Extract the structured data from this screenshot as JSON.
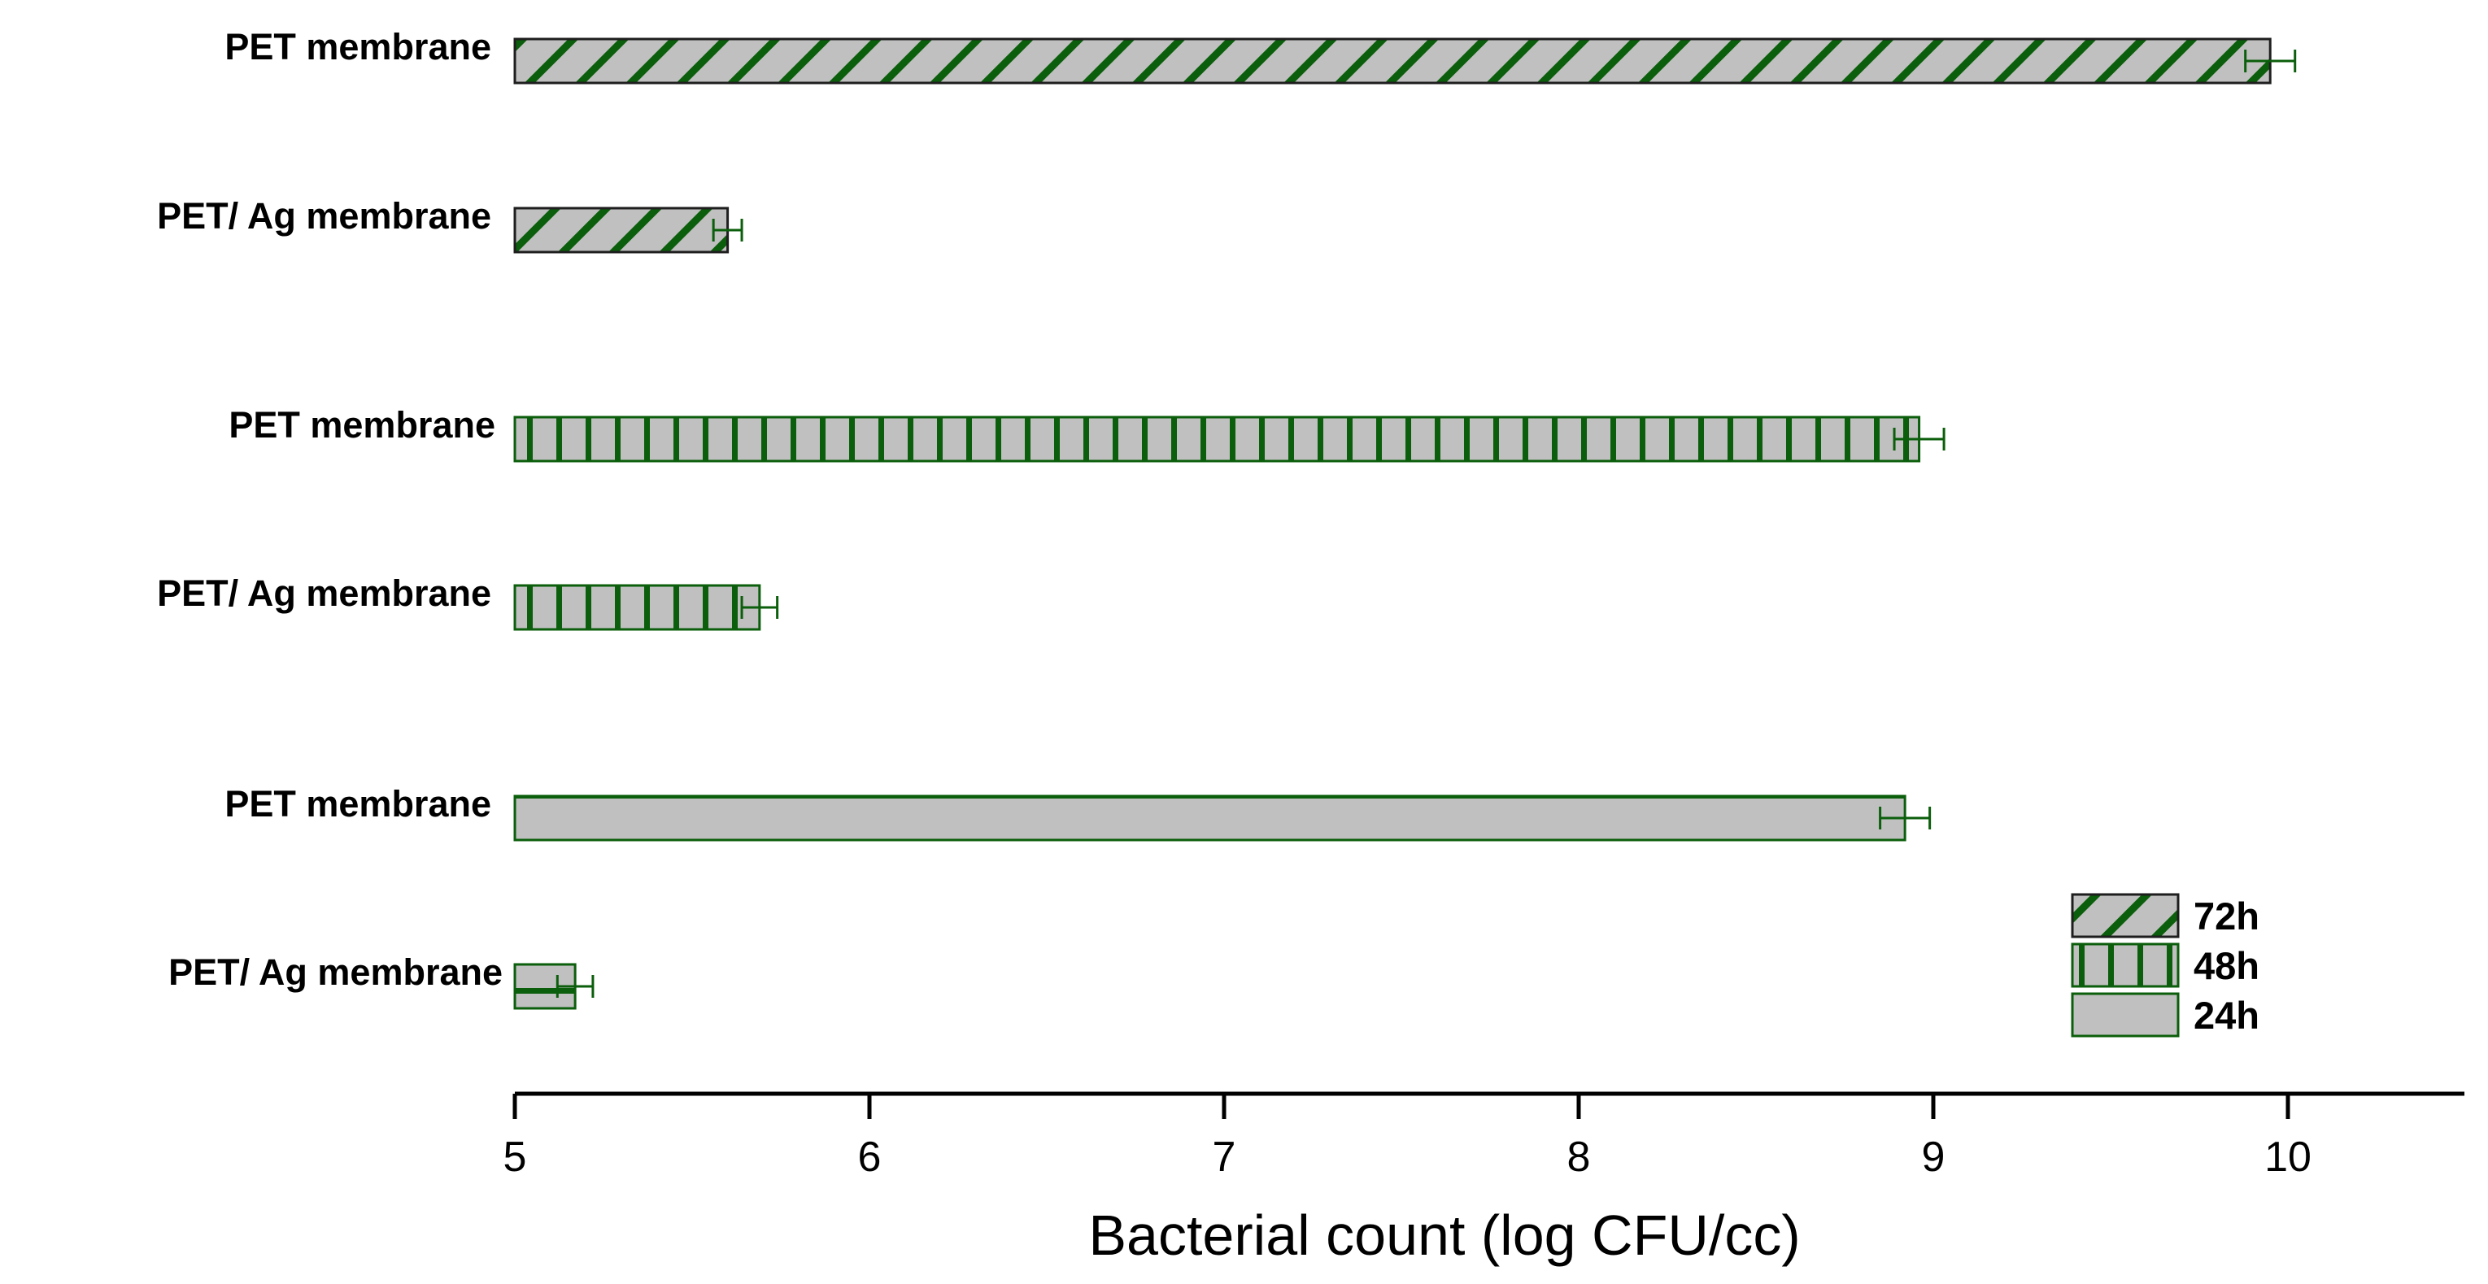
{
  "chart_data": {
    "type": "bar",
    "orientation": "horizontal",
    "xlabel": "Bacterial count (log CFU/cc)",
    "xlim": [
      5,
      10.5
    ],
    "xticks": [
      5,
      6,
      7,
      8,
      9,
      10
    ],
    "grid": false,
    "legend_position": "bottom-right",
    "colors": {
      "fill": "#c0c0c0",
      "pattern": "#0b5e0b",
      "outline": "#1e1e1e",
      "axis": "#000000"
    },
    "series": [
      {
        "name": "72h",
        "pattern": "diagonal",
        "bars": [
          {
            "label": "PET membrane",
            "value": 9.95,
            "error": 0.07
          },
          {
            "label": "PET/ Ag  membrane",
            "value": 5.6,
            "error": 0.04
          }
        ]
      },
      {
        "name": "48h",
        "pattern": "vertical",
        "bars": [
          {
            "label": "PET membrane",
            "value": 8.96,
            "error": 0.07
          },
          {
            "label": "PET/ Ag  membrane",
            "value": 5.69,
            "error": 0.05
          }
        ]
      },
      {
        "name": "24h",
        "pattern": "horizontal",
        "bars": [
          {
            "label": "PET membrane",
            "value": 8.92,
            "error": 0.07
          },
          {
            "label": "PET/ Ag  membrane",
            "value": 5.17,
            "error": 0.05
          }
        ]
      }
    ]
  }
}
